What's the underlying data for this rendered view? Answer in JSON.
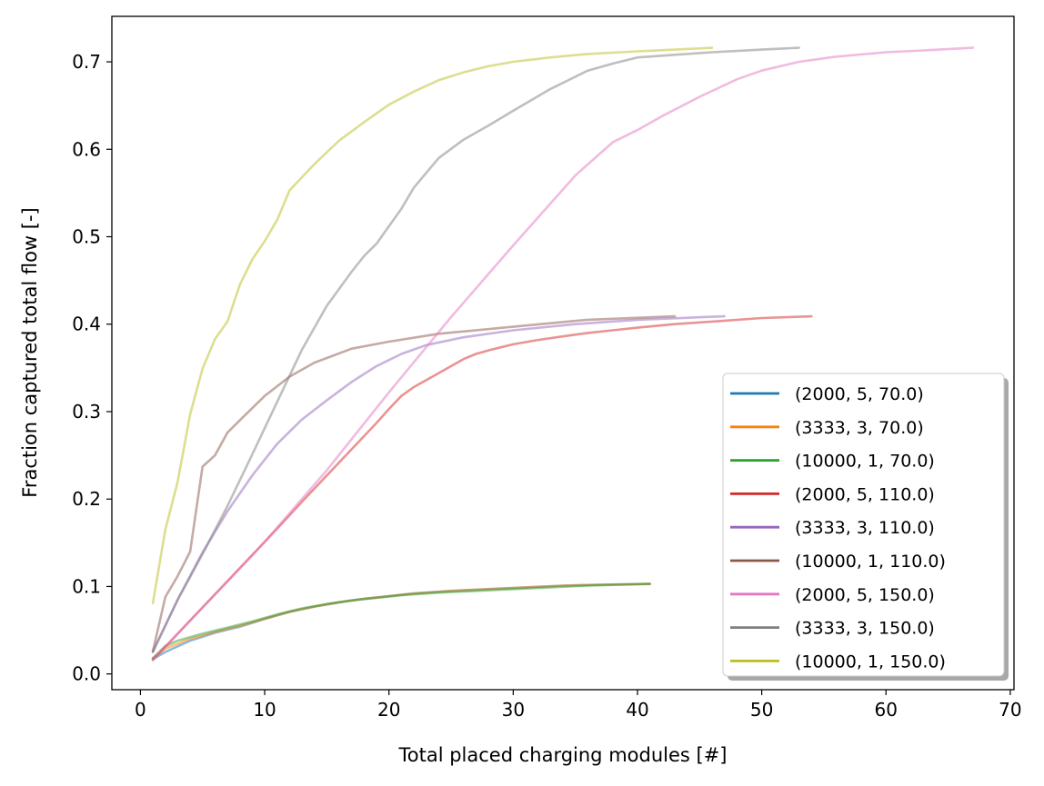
{
  "chart_data": {
    "type": "line",
    "title": "",
    "xlabel": "Total placed charging modules [#]",
    "ylabel": "Fraction captured total flow [-]",
    "xlim": [
      -2.3,
      70.3
    ],
    "ylim": [
      -0.018,
      0.752
    ],
    "xticks": [
      0,
      10,
      20,
      30,
      40,
      50,
      60,
      70
    ],
    "yticks": [
      0.0,
      0.1,
      0.2,
      0.3,
      0.4,
      0.5,
      0.6,
      0.7
    ],
    "ytick_labels": [
      "0.0",
      "0.1",
      "0.2",
      "0.3",
      "0.4",
      "0.5",
      "0.6",
      "0.7"
    ],
    "grid": false,
    "legend_position": "lower right",
    "series": [
      {
        "name": "(2000, 5, 70.0)",
        "color": "#1f77b4",
        "x": [
          1,
          2,
          4,
          6,
          8,
          10,
          12,
          14,
          16,
          18,
          20,
          22,
          25,
          28,
          31,
          34,
          37,
          41
        ],
        "y": [
          0.017,
          0.025,
          0.038,
          0.047,
          0.054,
          0.063,
          0.071,
          0.077,
          0.082,
          0.086,
          0.089,
          0.092,
          0.095,
          0.097,
          0.099,
          0.101,
          0.102,
          0.103
        ]
      },
      {
        "name": "(3333, 3, 70.0)",
        "color": "#ff7f0e",
        "x": [
          1,
          2,
          4,
          6,
          8,
          10,
          12,
          14,
          16,
          18,
          20,
          22,
          25,
          28,
          31,
          34,
          37,
          41
        ],
        "y": [
          0.018,
          0.029,
          0.04,
          0.048,
          0.055,
          0.063,
          0.071,
          0.077,
          0.082,
          0.086,
          0.089,
          0.092,
          0.095,
          0.097,
          0.099,
          0.101,
          0.102,
          0.103
        ]
      },
      {
        "name": "(10000, 1, 70.0)",
        "color": "#2ca02c",
        "x": [
          1,
          2,
          3,
          5,
          7,
          9,
          11,
          13,
          15,
          17,
          19,
          21,
          24,
          27,
          30,
          33,
          36,
          41
        ],
        "y": [
          0.018,
          0.032,
          0.038,
          0.046,
          0.053,
          0.06,
          0.068,
          0.075,
          0.08,
          0.084,
          0.087,
          0.09,
          0.093,
          0.095,
          0.097,
          0.099,
          0.101,
          0.103
        ]
      },
      {
        "name": "(2000, 5, 110.0)",
        "color": "#d62728",
        "x": [
          1,
          3,
          5,
          7,
          9,
          11,
          13,
          15,
          17,
          19,
          20,
          21,
          22,
          24,
          26,
          27,
          28,
          30,
          32,
          34,
          36,
          38,
          40,
          43,
          46,
          50,
          54
        ],
        "y": [
          0.016,
          0.046,
          0.076,
          0.106,
          0.136,
          0.166,
          0.197,
          0.227,
          0.257,
          0.287,
          0.303,
          0.318,
          0.328,
          0.344,
          0.36,
          0.366,
          0.37,
          0.377,
          0.382,
          0.386,
          0.39,
          0.393,
          0.396,
          0.4,
          0.403,
          0.407,
          0.409
        ]
      },
      {
        "name": "(3333, 3, 110.0)",
        "color": "#9467bd",
        "x": [
          1,
          3,
          5,
          7,
          9,
          11,
          13,
          15,
          17,
          19,
          21,
          23,
          26,
          30,
          35,
          40,
          47
        ],
        "y": [
          0.025,
          0.085,
          0.139,
          0.186,
          0.227,
          0.263,
          0.291,
          0.313,
          0.334,
          0.352,
          0.366,
          0.376,
          0.385,
          0.393,
          0.4,
          0.405,
          0.409
        ]
      },
      {
        "name": "(10000, 1, 110.0)",
        "color": "#8c564b",
        "x": [
          1,
          2,
          3,
          4,
          5,
          6,
          7,
          8,
          10,
          12,
          14,
          17,
          20,
          24,
          30,
          36,
          43
        ],
        "y": [
          0.026,
          0.088,
          0.112,
          0.14,
          0.237,
          0.25,
          0.276,
          0.29,
          0.318,
          0.34,
          0.356,
          0.372,
          0.38,
          0.389,
          0.397,
          0.405,
          0.409
        ]
      },
      {
        "name": "(2000, 5, 150.0)",
        "color": "#e377c2",
        "x": [
          1,
          5,
          10,
          15,
          20,
          25,
          30,
          35,
          38,
          40,
          42,
          45,
          48,
          50,
          53,
          56,
          60,
          63,
          67
        ],
        "y": [
          0.016,
          0.076,
          0.151,
          0.233,
          0.322,
          0.408,
          0.49,
          0.57,
          0.608,
          0.622,
          0.638,
          0.66,
          0.68,
          0.69,
          0.7,
          0.706,
          0.711,
          0.713,
          0.716
        ]
      },
      {
        "name": "(3333, 3, 150.0)",
        "color": "#7f7f7f",
        "x": [
          1,
          3,
          5,
          7,
          9,
          11,
          13,
          15,
          17,
          18,
          19,
          21,
          22,
          24,
          26,
          28,
          30,
          33,
          36,
          38,
          40,
          43,
          46,
          50,
          53
        ],
        "y": [
          0.026,
          0.085,
          0.137,
          0.192,
          0.251,
          0.311,
          0.371,
          0.421,
          0.46,
          0.478,
          0.492,
          0.532,
          0.556,
          0.59,
          0.611,
          0.627,
          0.644,
          0.669,
          0.69,
          0.698,
          0.705,
          0.708,
          0.711,
          0.714,
          0.716
        ]
      },
      {
        "name": "(10000, 1, 150.0)",
        "color": "#bcbd22",
        "x": [
          1,
          2,
          3,
          4,
          5,
          6,
          7,
          8,
          9,
          10,
          11,
          12,
          14,
          16,
          18,
          20,
          22,
          24,
          26,
          28,
          30,
          33,
          36,
          40,
          43,
          46
        ],
        "y": [
          0.081,
          0.165,
          0.22,
          0.297,
          0.349,
          0.383,
          0.403,
          0.445,
          0.474,
          0.495,
          0.519,
          0.553,
          0.583,
          0.61,
          0.631,
          0.651,
          0.666,
          0.679,
          0.688,
          0.695,
          0.7,
          0.705,
          0.709,
          0.712,
          0.714,
          0.716
        ]
      }
    ]
  }
}
